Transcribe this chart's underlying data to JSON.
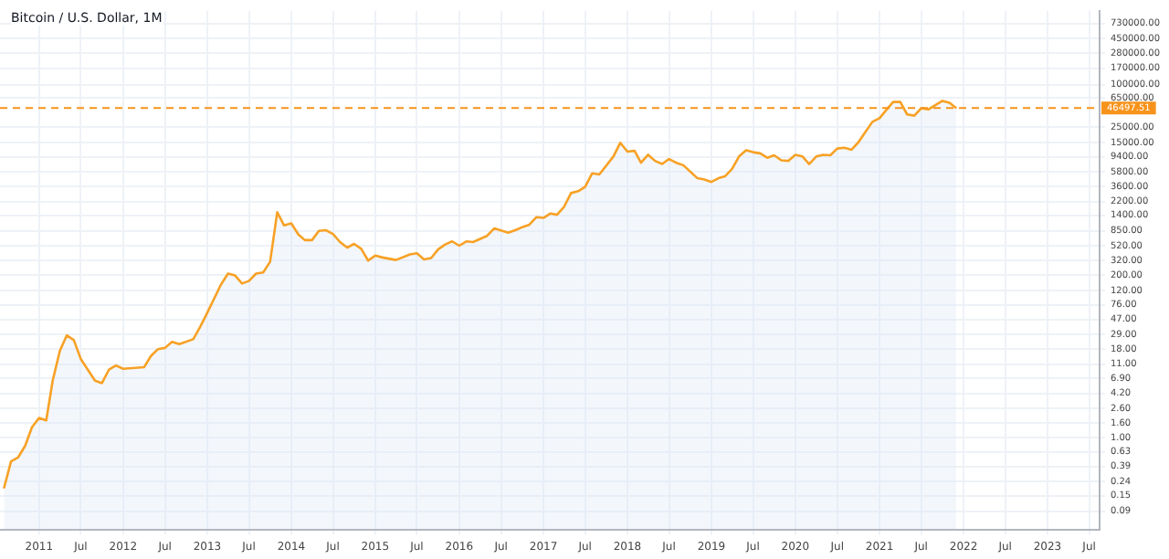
{
  "chart_data": {
    "type": "area",
    "title": "Bitcoin / U.S. Dollar, 1M",
    "x": [
      "2010-08",
      "2010-09",
      "2010-10",
      "2010-11",
      "2010-12",
      "2011-01",
      "2011-02",
      "2011-03",
      "2011-04",
      "2011-05",
      "2011-06",
      "2011-07",
      "2011-09",
      "2011-10",
      "2011-11",
      "2011-12",
      "2012-01",
      "2012-04",
      "2012-05",
      "2012-06",
      "2012-07",
      "2012-08",
      "2012-09",
      "2012-11",
      "2012-12",
      "2013-01",
      "2013-03",
      "2013-04",
      "2013-05",
      "2013-06",
      "2013-07",
      "2013-08",
      "2013-09",
      "2013-10",
      "2013-11",
      "2013-12",
      "2014-01",
      "2014-02",
      "2014-03",
      "2014-04",
      "2014-05",
      "2014-06",
      "2014-07",
      "2014-08",
      "2014-09",
      "2014-10",
      "2014-11",
      "2014-12",
      "2015-01",
      "2015-02",
      "2015-04",
      "2015-06",
      "2015-07",
      "2015-08",
      "2015-09",
      "2015-10",
      "2015-11",
      "2015-12",
      "2016-01",
      "2016-02",
      "2016-03",
      "2016-05",
      "2016-06",
      "2016-08",
      "2016-09",
      "2016-10",
      "2016-11",
      "2016-12",
      "2017-01",
      "2017-02",
      "2017-03",
      "2017-04",
      "2017-05",
      "2017-06",
      "2017-07",
      "2017-08",
      "2017-09",
      "2017-11",
      "2017-12",
      "2018-01",
      "2018-02",
      "2018-03",
      "2018-04",
      "2018-05",
      "2018-06",
      "2018-07",
      "2018-08",
      "2018-09",
      "2018-11",
      "2018-12",
      "2019-01",
      "2019-02",
      "2019-03",
      "2019-04",
      "2019-05",
      "2019-06",
      "2019-07",
      "2019-08",
      "2019-09",
      "2019-10",
      "2019-11",
      "2019-12",
      "2020-01",
      "2020-02",
      "2020-03",
      "2020-04",
      "2020-05",
      "2020-06",
      "2020-07",
      "2020-08",
      "2020-09",
      "2020-10",
      "2020-11",
      "2020-12",
      "2021-01",
      "2021-02",
      "2021-03",
      "2021-04",
      "2021-05",
      "2021-06",
      "2021-07",
      "2021-08",
      "2021-10",
      "2021-11",
      "2021-12"
    ],
    "series": [
      {
        "color": "#f7a125",
        "values": [
          0.19,
          0.46,
          0.52,
          0.76,
          1.4,
          1.9,
          1.75,
          6.4,
          16.8,
          28,
          24,
          13,
          6.4,
          5.9,
          9.2,
          10.5,
          9.4,
          9.9,
          14.3,
          17.9,
          18.6,
          22.7,
          21,
          24.7,
          36.9,
          58.7,
          146,
          210,
          198,
          152,
          165,
          210,
          218,
          308,
          1550,
          1010,
          1080,
          750,
          625,
          625,
          845,
          863,
          764,
          587,
          490,
          553,
          471,
          321,
          377,
          355,
          327,
          393,
          408,
          334,
          348,
          461,
          542,
          600,
          521,
          600,
          587,
          719,
          916,
          796,
          863,
          955,
          1035,
          1320,
          1290,
          1490,
          1430,
          1860,
          2900,
          3080,
          3550,
          5530,
          5310,
          9550,
          14900,
          11200,
          11500,
          7800,
          10100,
          8280,
          7480,
          8810,
          7800,
          7190,
          4710,
          4520,
          4170,
          4710,
          5000,
          6370,
          9550,
          11700,
          11000,
          10600,
          9170,
          9930,
          8450,
          8280,
          10100,
          9550,
          7480,
          9550,
          10100,
          9930,
          12400,
          12700,
          11900,
          15200,
          21400,
          29600,
          33400,
          44300,
          56500,
          56500,
          37700,
          36200,
          46100,
          44300,
          58700,
          55300,
          46100
        ]
      }
    ],
    "log": "y",
    "grid": true,
    "ylim": [
      0.05,
      1100000
    ],
    "yticks": [
      {
        "value": 0.09,
        "label": "0.09"
      },
      {
        "value": 0.15,
        "label": "0.15"
      },
      {
        "value": 0.24,
        "label": "0.24"
      },
      {
        "value": 0.39,
        "label": "0.39"
      },
      {
        "value": 0.63,
        "label": "0.63"
      },
      {
        "value": 1,
        "label": "1.00"
      },
      {
        "value": 1.6,
        "label": "1.60"
      },
      {
        "value": 2.6,
        "label": "2.60"
      },
      {
        "value": 4.2,
        "label": "4.20"
      },
      {
        "value": 6.9,
        "label": "6.90"
      },
      {
        "value": 11,
        "label": "11.00"
      },
      {
        "value": 18,
        "label": "18.00"
      },
      {
        "value": 29,
        "label": "29.00"
      },
      {
        "value": 47,
        "label": "47.00"
      },
      {
        "value": 76,
        "label": "76.00"
      },
      {
        "value": 120,
        "label": "120.00"
      },
      {
        "value": 200,
        "label": "200.00"
      },
      {
        "value": 320,
        "label": "320.00"
      },
      {
        "value": 520,
        "label": "520.00"
      },
      {
        "value": 850,
        "label": "850.00"
      },
      {
        "value": 1400,
        "label": "1400.00"
      },
      {
        "value": 2200,
        "label": "2200.00"
      },
      {
        "value": 3600,
        "label": "3600.00"
      },
      {
        "value": 5800,
        "label": "5800.00"
      },
      {
        "value": 9400,
        "label": "9400.00"
      },
      {
        "value": 15000,
        "label": "15000.00"
      },
      {
        "value": 25000,
        "label": "25000.00"
      },
      {
        "value": 65000,
        "label": "65000.00"
      },
      {
        "value": 100000,
        "label": "100000.00"
      },
      {
        "value": 170000,
        "label": "170000.00"
      },
      {
        "value": 280000,
        "label": "280000.00"
      },
      {
        "value": 450000,
        "label": "450000.00"
      },
      {
        "value": 730000,
        "label": "730000.00"
      }
    ],
    "xlim": [
      "2010-07-15",
      "2023-08-15"
    ],
    "xticks": [
      {
        "value": "2011-01",
        "label": "2011"
      },
      {
        "value": "2011-07",
        "label": "Jul"
      },
      {
        "value": "2012-01",
        "label": "2012"
      },
      {
        "value": "2012-07",
        "label": "Jul"
      },
      {
        "value": "2013-01",
        "label": "2013"
      },
      {
        "value": "2013-07",
        "label": "Jul"
      },
      {
        "value": "2014-01",
        "label": "2014"
      },
      {
        "value": "2014-07",
        "label": "Jul"
      },
      {
        "value": "2015-01",
        "label": "2015"
      },
      {
        "value": "2015-07",
        "label": "Jul"
      },
      {
        "value": "2016-01",
        "label": "2016"
      },
      {
        "value": "2016-07",
        "label": "Jul"
      },
      {
        "value": "2017-01",
        "label": "2017"
      },
      {
        "value": "2017-07",
        "label": "Jul"
      },
      {
        "value": "2018-01",
        "label": "2018"
      },
      {
        "value": "2018-07",
        "label": "Jul"
      },
      {
        "value": "2019-01",
        "label": "2019"
      },
      {
        "value": "2019-07",
        "label": "Jul"
      },
      {
        "value": "2020-01",
        "label": "2020"
      },
      {
        "value": "2020-07",
        "label": "Jul"
      },
      {
        "value": "2021-01",
        "label": "2021"
      },
      {
        "value": "2021-07",
        "label": "Jul"
      },
      {
        "value": "2022-01",
        "label": "2022"
      },
      {
        "value": "2022-07",
        "label": "Jul"
      },
      {
        "value": "2023-01",
        "label": "2023"
      },
      {
        "value": "2023-07",
        "label": "Jul"
      }
    ],
    "ref_lines": [
      {
        "axis": "y",
        "value": 46497.51,
        "label": "46497.51",
        "color": "#f7931a",
        "line_style": "dashed"
      }
    ],
    "legend": false
  }
}
